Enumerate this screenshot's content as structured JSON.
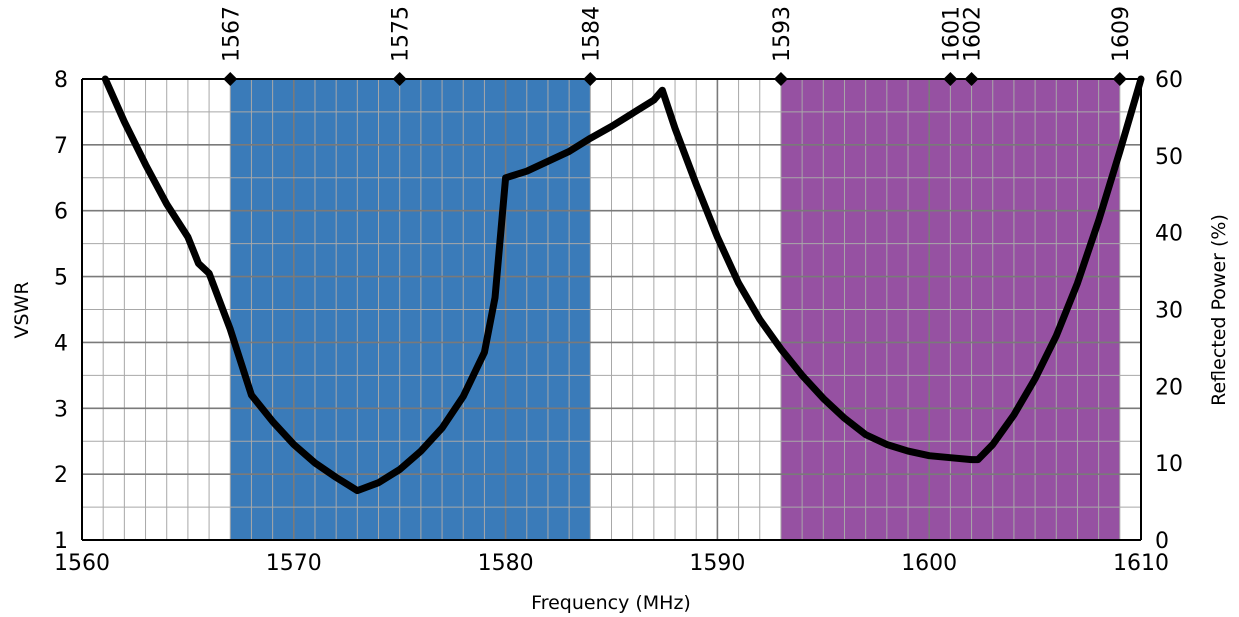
{
  "chart_data": {
    "type": "line",
    "title": "",
    "xlabel": "Frequency (MHz)",
    "ylabel": "VSWR",
    "y2label": "Reflected Power (%)",
    "xlim": [
      1560,
      1610
    ],
    "ylim": [
      1,
      8
    ],
    "y2lim": [
      0,
      60
    ],
    "xticks": [
      "1560",
      "1570",
      "1580",
      "1590",
      "1600",
      "1610"
    ],
    "yticks": [
      "1",
      "2",
      "3",
      "4",
      "5",
      "6",
      "7",
      "8"
    ],
    "y2ticks": [
      "0",
      "10",
      "20",
      "30",
      "40",
      "50",
      "60"
    ],
    "grid": true,
    "legend": "none",
    "bands": [
      {
        "from": 1567,
        "to": 1584,
        "color": "#3a7bb9"
      },
      {
        "from": 1593,
        "to": 1609,
        "color": "#9651a2"
      }
    ],
    "markers": [
      {
        "x": 1567,
        "label": "1567"
      },
      {
        "x": 1575,
        "label": "1575"
      },
      {
        "x": 1584,
        "label": "1584"
      },
      {
        "x": 1593,
        "label": "1593"
      },
      {
        "x": 1601,
        "label": "1601"
      },
      {
        "x": 1602,
        "label": "1602"
      },
      {
        "x": 1609,
        "label": "1609"
      }
    ],
    "series": [
      {
        "color": "#000000",
        "x": [
          1561.1,
          1562,
          1563,
          1564,
          1565,
          1565.5,
          1566,
          1567,
          1568,
          1569,
          1570,
          1571,
          1572,
          1572.5,
          1573,
          1574,
          1575,
          1576,
          1577,
          1578,
          1579,
          1579.5,
          1580,
          1581,
          1582,
          1583,
          1584,
          1585,
          1586,
          1587,
          1587.4,
          1588,
          1589,
          1590,
          1591,
          1592,
          1593,
          1594,
          1595,
          1596,
          1597,
          1598,
          1599,
          1600,
          1601,
          1602,
          1602.3,
          1603,
          1604,
          1605,
          1606,
          1607,
          1608,
          1609,
          1609.5,
          1610
        ],
        "y": [
          8.0,
          7.35,
          6.7,
          6.1,
          5.6,
          5.2,
          5.05,
          4.2,
          3.2,
          2.8,
          2.45,
          2.17,
          1.95,
          1.85,
          1.75,
          1.87,
          2.07,
          2.35,
          2.7,
          3.18,
          3.85,
          4.68,
          6.5,
          6.6,
          6.75,
          6.9,
          7.1,
          7.28,
          7.48,
          7.68,
          7.83,
          7.25,
          6.4,
          5.6,
          4.9,
          4.35,
          3.9,
          3.5,
          3.15,
          2.85,
          2.6,
          2.45,
          2.35,
          2.28,
          2.25,
          2.22,
          2.22,
          2.45,
          2.9,
          3.45,
          4.1,
          4.9,
          5.85,
          6.9,
          7.45,
          8.0
        ]
      }
    ]
  }
}
